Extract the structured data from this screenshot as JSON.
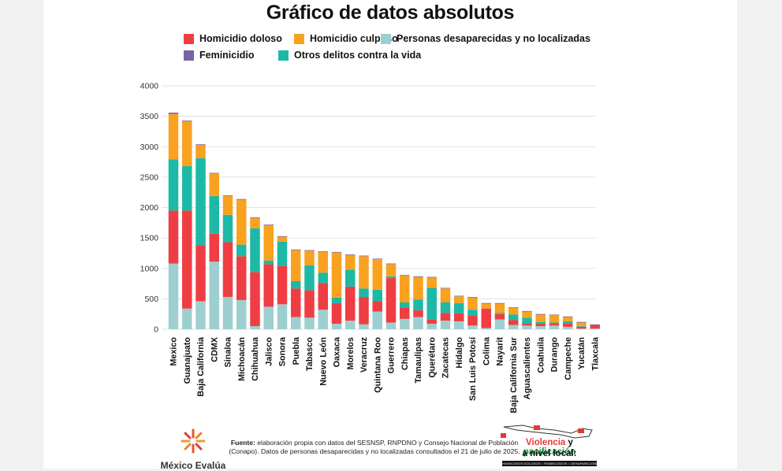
{
  "chart_data": {
    "type": "bar",
    "stacked": true,
    "title": "Gráfico de datos absolutos",
    "xlabel": "",
    "ylabel": "",
    "ylim": [
      0,
      4000
    ],
    "yticks": [
      0,
      500,
      1000,
      1500,
      2000,
      2500,
      3000,
      3500,
      4000
    ],
    "grid": true,
    "legend_position": "top",
    "categories": [
      "Mexico",
      "Guanajuato",
      "Baja California",
      "CDMX",
      "Sinaloa",
      "Michoacán",
      "Chihuahua",
      "Jalisco",
      "Sonora",
      "Puebla",
      "Tabasco",
      "Nuevo León",
      "Oaxaca",
      "Morelos",
      "Veracruz",
      "Quintana Roo",
      "Guerrero",
      "Chiapas",
      "Tamaulipas",
      "Querétaro",
      "Zacatecas",
      "Hidalgo",
      "San Luis Potosí",
      "Colima",
      "Nayarit",
      "Baja California Sur",
      "Aguascalientes",
      "Coahuila",
      "Durango",
      "Campeche",
      "Yucatán",
      "Tlaxcala"
    ],
    "series": [
      {
        "name": "Personas desaparecidas y no localizadas",
        "color": "#9ecfd0",
        "values": [
          1080,
          340,
          460,
          1110,
          530,
          480,
          50,
          370,
          410,
          200,
          190,
          320,
          90,
          140,
          80,
          290,
          110,
          170,
          200,
          90,
          140,
          130,
          60,
          20,
          160,
          70,
          60,
          50,
          60,
          40,
          10,
          10
        ]
      },
      {
        "name": "Homicidio doloso",
        "color": "#ef3e43",
        "values": [
          870,
          1610,
          920,
          460,
          900,
          720,
          890,
          700,
          630,
          470,
          450,
          440,
          340,
          560,
          450,
          170,
          730,
          190,
          110,
          70,
          130,
          130,
          160,
          320,
          90,
          80,
          40,
          40,
          30,
          60,
          30,
          60
        ]
      },
      {
        "name": "Otros delitos contra la vida",
        "color": "#1db9a6",
        "values": [
          840,
          730,
          1430,
          620,
          450,
          190,
          720,
          60,
          400,
          120,
          410,
          170,
          90,
          280,
          140,
          190,
          30,
          80,
          180,
          520,
          170,
          170,
          100,
          0,
          20,
          90,
          90,
          30,
          20,
          30,
          10,
          0
        ]
      },
      {
        "name": "Homicidio culposo",
        "color": "#f8a220",
        "values": [
          750,
          740,
          220,
          370,
          310,
          740,
          170,
          580,
          80,
          510,
          240,
          340,
          740,
          240,
          530,
          500,
          200,
          440,
          370,
          170,
          230,
          110,
          200,
          80,
          150,
          110,
          100,
          120,
          120,
          70,
          60,
          0
        ]
      },
      {
        "name": "Feminicidio",
        "color": "#7b62a6",
        "values": [
          20,
          10,
          10,
          10,
          10,
          10,
          10,
          10,
          10,
          10,
          10,
          10,
          10,
          10,
          10,
          10,
          10,
          10,
          10,
          10,
          10,
          10,
          10,
          10,
          10,
          10,
          10,
          10,
          10,
          10,
          10,
          10
        ]
      }
    ]
  },
  "legend_order": [
    "Homicidio doloso",
    "Homicidio culposo",
    "Personas desaparecidas y no localizadas",
    "Feminicidio",
    "Otros delitos contra la vida"
  ],
  "footer": {
    "org": "México Evalúa",
    "source_label": "Fuente:",
    "source_text": "elaboración propia con datos del SESNSP, RNPDNO y Consejo Nacional de Población (Conapo). Datos de personas desaparecidas y no localizadas consultados el 21 de julio de 2025.",
    "campaign_line1_a": "Violencia",
    "campaign_line1_b": "y",
    "campaign_line1_c": "pacificación",
    "campaign_line2": "a nivel local:",
    "campaign_bar": "HOMICIDIOS DOLOSOS • FEMINICIDIOS • DESAPARICIONES"
  },
  "colors": {
    "campaign_red": "#e53935",
    "campaign_green": "#1a8f3c"
  }
}
